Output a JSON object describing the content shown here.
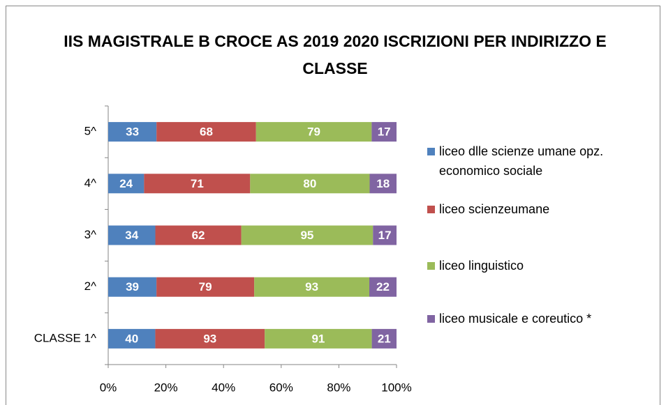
{
  "chart_data": {
    "type": "bar",
    "orientation": "horizontal",
    "stacking": "percent",
    "title": "IIS MAGISTRALE B CROCE AS 2019 2020 ISCRIZIONI PER INDIRIZZO E CLASSE",
    "categories": [
      "CLASSE 1^",
      "2^",
      "3^",
      "4^",
      "5^"
    ],
    "series": [
      {
        "name": "liceo dlle scienze umane opz. economico sociale",
        "color": "#4f81bd",
        "values": [
          40,
          39,
          34,
          24,
          33
        ]
      },
      {
        "name": "liceo scienzeumane",
        "color": "#c0504d",
        "values": [
          93,
          79,
          62,
          71,
          68
        ]
      },
      {
        "name": "liceo linguistico",
        "color": "#9bbb59",
        "values": [
          91,
          93,
          95,
          80,
          79
        ]
      },
      {
        "name": "liceo musicale e coreutico *",
        "color": "#8064a2",
        "values": [
          21,
          22,
          17,
          18,
          17
        ]
      }
    ],
    "xlim": [
      0,
      100
    ],
    "xticks": [
      {
        "value": 0,
        "label": "0%"
      },
      {
        "value": 20,
        "label": "20%"
      },
      {
        "value": 40,
        "label": "40%"
      },
      {
        "value": 60,
        "label": "60%"
      },
      {
        "value": 80,
        "label": "80%"
      },
      {
        "value": 100,
        "label": "100%"
      }
    ],
    "legend": "right"
  }
}
